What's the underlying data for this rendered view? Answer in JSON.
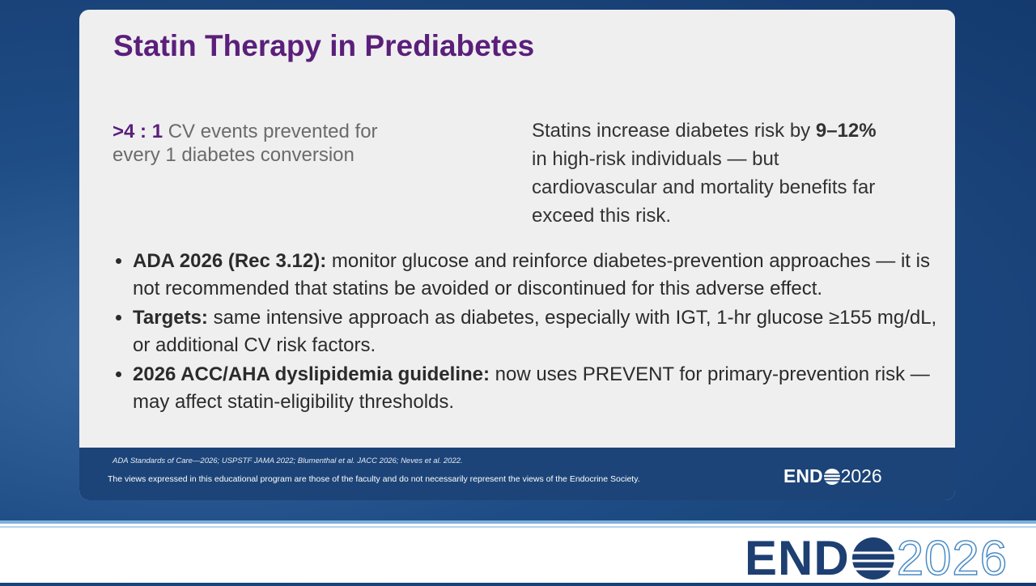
{
  "slide": {
    "title": "Statin Therapy in Prediabetes",
    "stat": {
      "value": ">4 : 1",
      "text": "CV events prevented for every 1 diabetes conversion"
    },
    "summary": {
      "lead": "Statins increase diabetes risk by",
      "bold": "9–12%",
      "rest": "in high-risk individuals — but cardiovascular and mortality benefits far exceed this risk."
    },
    "bullets": [
      {
        "bold": "ADA 2026 (Rec 3.12):",
        "text": "monitor glucose and reinforce diabetes-prevention approaches — it is not recommended that statins be avoided or discontinued for this adverse effect."
      },
      {
        "bold": "Targets:",
        "text": "same intensive approach as diabetes, especially with IGT, 1-hr glucose ≥155 mg/dL, or additional CV risk factors."
      },
      {
        "bold": "2026 ACC/AHA dyslipidemia guideline:",
        "text": "now uses PREVENT for primary-prevention risk — may affect statin-eligibility thresholds."
      }
    ],
    "footer": {
      "citation": "ADA Standards of Care—2026; USPSTF JAMA 2022; Blumenthal et al. JACC 2026; Neves et al. 2022.",
      "disclaimer": "The views expressed in this educational program are those of the faculty and do not necessarily represent the views of the Endocrine Society."
    },
    "logo": {
      "left": "END",
      "right": "2026"
    }
  }
}
